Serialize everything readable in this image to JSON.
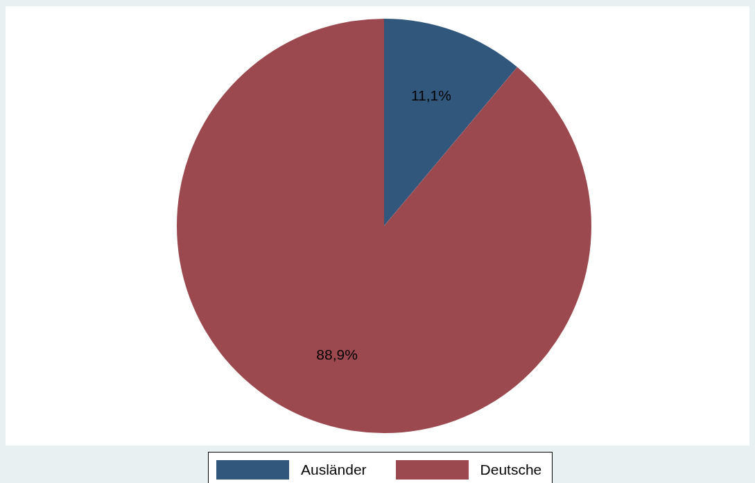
{
  "chart_data": {
    "type": "pie",
    "categories": [
      "Ausländer",
      "Deutsche"
    ],
    "values": [
      11.1,
      88.9
    ],
    "colors": [
      "#31587c",
      "#9b494f"
    ],
    "value_labels": [
      "11,1%",
      "88,9%"
    ],
    "legend": "bottom"
  }
}
